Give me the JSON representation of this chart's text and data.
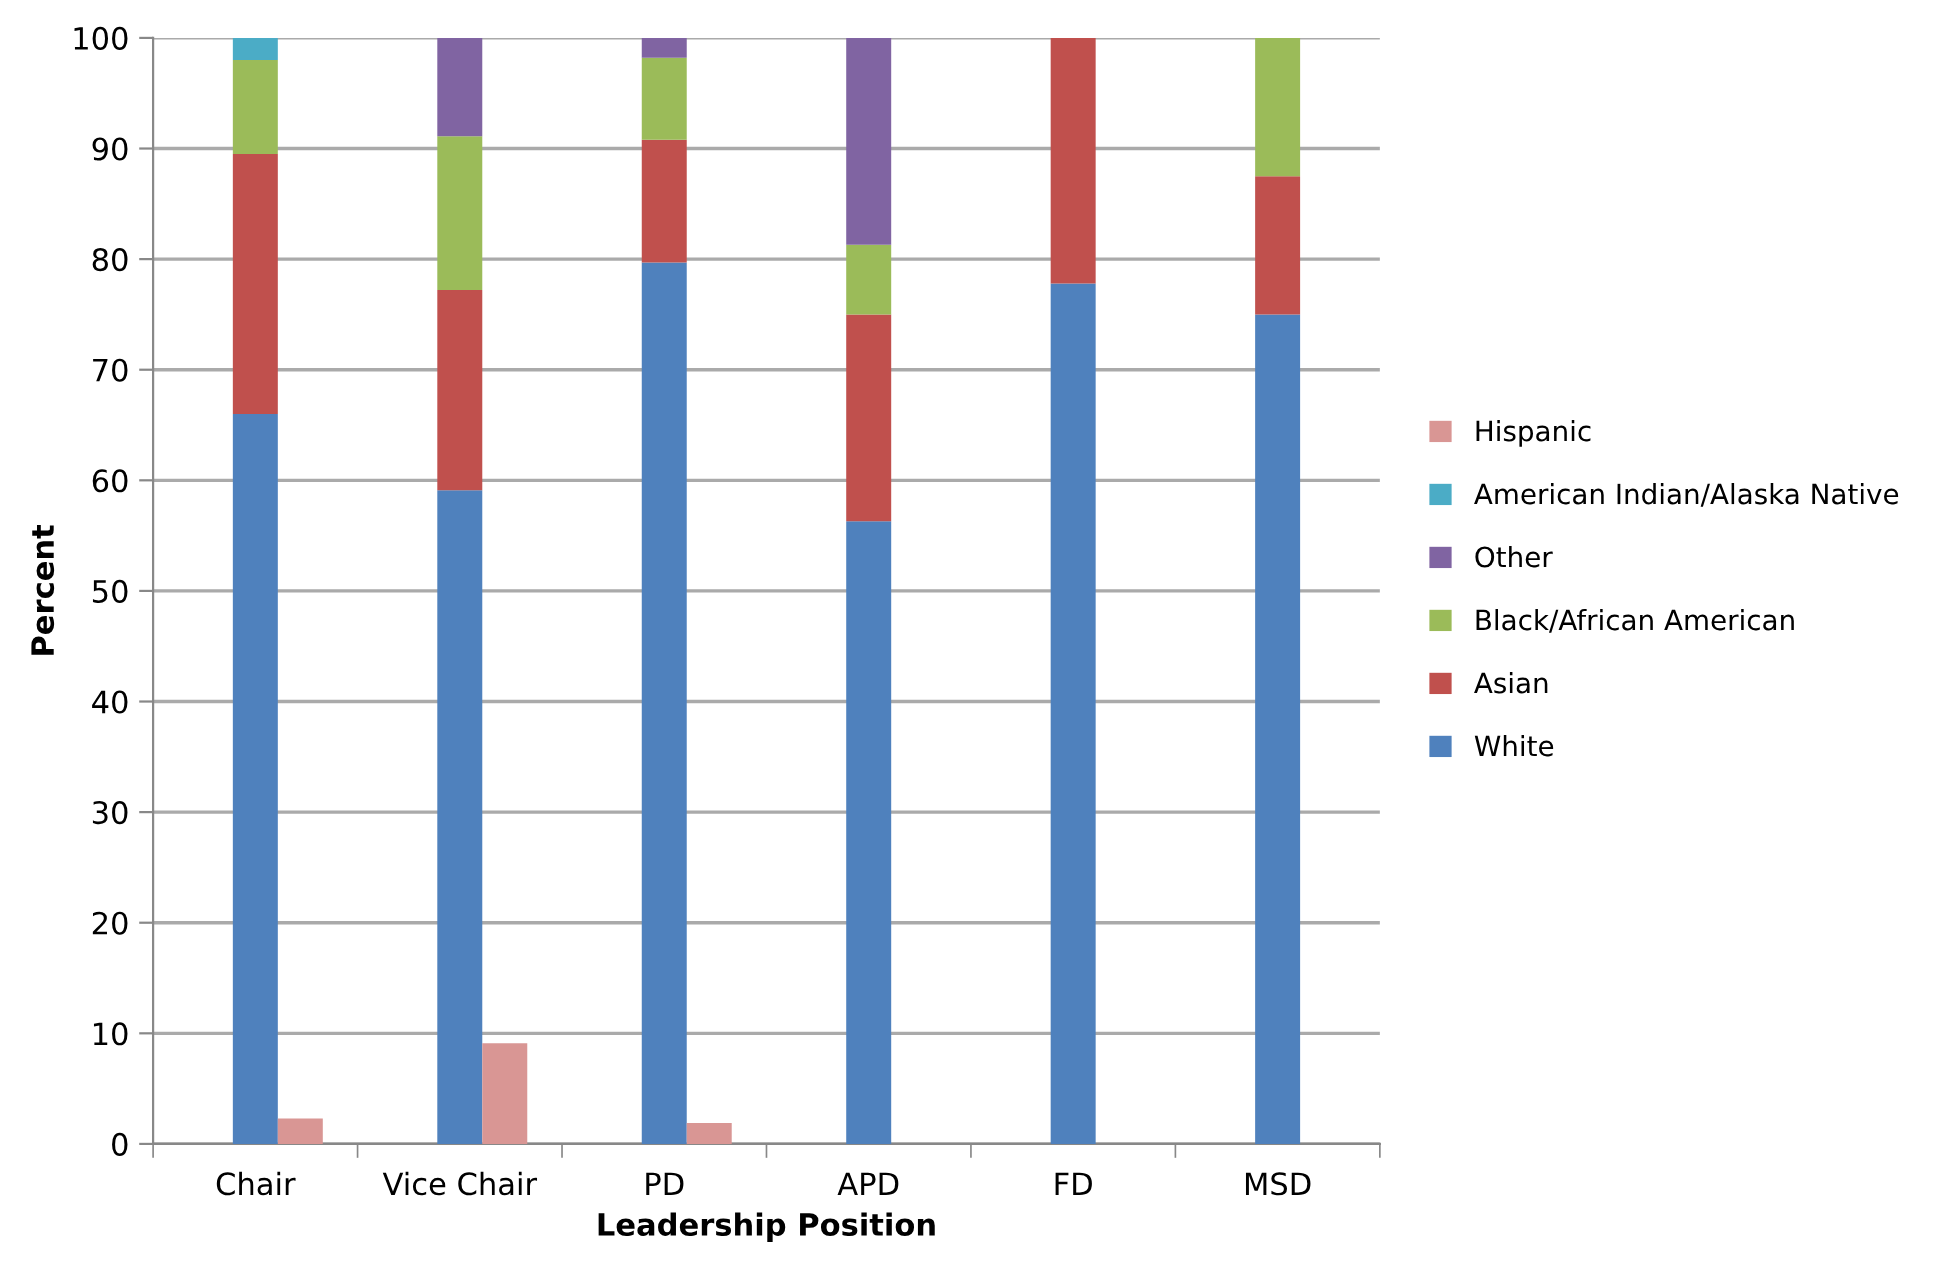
{
  "chart_data": [
    {
      "type": "bar",
      "stacked": true,
      "xlabel": "Leadership Position",
      "ylabel": "Percent",
      "categories": [
        "Chair",
        "Vice Chair",
        "PD",
        "APD",
        "FD",
        "MSD"
      ],
      "series": [
        {
          "name": "White",
          "color": "#4f81bd",
          "values": [
            66.0,
            59.1,
            79.7,
            56.3,
            77.8,
            75.0
          ]
        },
        {
          "name": "Asian",
          "color": "#c0504d",
          "values": [
            23.5,
            18.1,
            11.1,
            18.7,
            22.2,
            12.5
          ]
        },
        {
          "name": "Black/African American",
          "color": "#9bbb59",
          "values": [
            8.5,
            13.9,
            7.4,
            6.3,
            null,
            12.5
          ]
        },
        {
          "name": "Other",
          "color": "#8064a2",
          "values": [
            null,
            8.9,
            1.8,
            18.7,
            null,
            null
          ]
        },
        {
          "name": "American Indian/Alaska Native",
          "color": "#4bacc6",
          "values": [
            2.0,
            null,
            null,
            null,
            null,
            null
          ]
        }
      ],
      "ylim": [
        0,
        100
      ],
      "yticks": [
        0,
        10,
        20,
        30,
        40,
        50,
        60,
        70,
        80,
        90,
        100
      ],
      "grid": "y",
      "legend": "right"
    },
    {
      "type": "bar",
      "categories": [
        null,
        null,
        null,
        null,
        null,
        null
      ],
      "series": [
        {
          "name": "Hispanic",
          "color": "#d99694",
          "values": [
            2.3,
            9.1,
            1.9,
            null,
            null,
            null
          ]
        }
      ],
      "ylim": [
        0,
        100
      ],
      "tick_labels": false,
      "legend": "right"
    }
  ]
}
